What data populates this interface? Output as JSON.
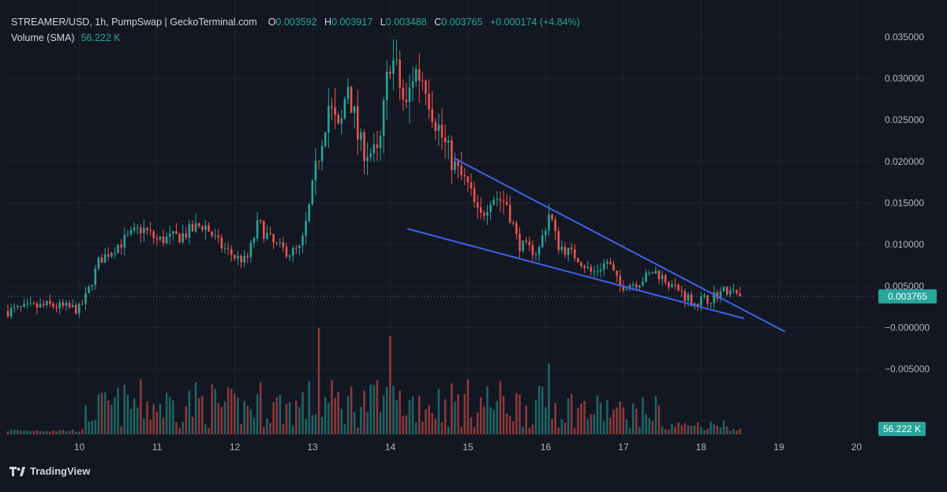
{
  "legend": {
    "symbol": "STREAMER/USD, 1h, PumpSwap | GeckoTerminal.com",
    "o_label": "O",
    "o_value": "0.003592",
    "h_label": "H",
    "h_value": "0.003917",
    "l_label": "L",
    "l_value": "0.003488",
    "c_label": "C",
    "c_value": "0.003765",
    "change": "+0.000174 (+4.84%)",
    "volume_label": "Volume (SMA)",
    "volume_value": "56.222 K"
  },
  "branding": {
    "text": "TradingView"
  },
  "colors": {
    "background": "#131722",
    "up": "#26a69a",
    "down": "#ef5350",
    "trendline": "#3d63e8",
    "price_badge": "#26a69a"
  },
  "chart_data": {
    "type": "candlestick",
    "x_axis": {
      "ticks": [
        "10",
        "11",
        "12",
        "13",
        "14",
        "15",
        "16",
        "17",
        "18",
        "19",
        "20"
      ],
      "range": [
        9.08,
        20.25
      ]
    },
    "y_axis": {
      "ticks": [
        "0.035000",
        "0.030000",
        "0.025000",
        "0.020000",
        "0.015000",
        "0.010000",
        "0.005000",
        "−0.000000",
        "−0.005000"
      ],
      "tick_values": [
        0.035,
        0.03,
        0.025,
        0.02,
        0.015,
        0.01,
        0.005,
        0.0,
        -0.005
      ],
      "range": [
        -0.0085,
        0.0385
      ]
    },
    "last_price": {
      "value": 0.003765,
      "label": "0.003765"
    },
    "last_volume": {
      "label": "56.222 K"
    },
    "anchors": [
      {
        "t": 9.08,
        "p": 0.002
      },
      {
        "t": 9.6,
        "p": 0.0027
      },
      {
        "t": 10.0,
        "p": 0.0022
      },
      {
        "t": 10.1,
        "p": 0.004
      },
      {
        "t": 10.25,
        "p": 0.008
      },
      {
        "t": 10.5,
        "p": 0.01
      },
      {
        "t": 10.8,
        "p": 0.012
      },
      {
        "t": 11.0,
        "p": 0.0105
      },
      {
        "t": 11.3,
        "p": 0.011
      },
      {
        "t": 11.6,
        "p": 0.0125
      },
      {
        "t": 11.8,
        "p": 0.01
      },
      {
        "t": 12.0,
        "p": 0.0085
      },
      {
        "t": 12.15,
        "p": 0.008
      },
      {
        "t": 12.3,
        "p": 0.0125
      },
      {
        "t": 12.5,
        "p": 0.01
      },
      {
        "t": 12.7,
        "p": 0.009
      },
      {
        "t": 12.85,
        "p": 0.0095
      },
      {
        "t": 12.95,
        "p": 0.014
      },
      {
        "t": 13.1,
        "p": 0.022
      },
      {
        "t": 13.2,
        "p": 0.027
      },
      {
        "t": 13.35,
        "p": 0.023
      },
      {
        "t": 13.45,
        "p": 0.03
      },
      {
        "t": 13.6,
        "p": 0.022
      },
      {
        "t": 13.85,
        "p": 0.0205
      },
      {
        "t": 14.0,
        "p": 0.033
      },
      {
        "t": 14.1,
        "p": 0.03
      },
      {
        "t": 14.2,
        "p": 0.026
      },
      {
        "t": 14.3,
        "p": 0.031
      },
      {
        "t": 14.45,
        "p": 0.03
      },
      {
        "t": 14.55,
        "p": 0.026
      },
      {
        "t": 14.7,
        "p": 0.022
      },
      {
        "t": 14.85,
        "p": 0.019
      },
      {
        "t": 15.0,
        "p": 0.017
      },
      {
        "t": 15.15,
        "p": 0.013
      },
      {
        "t": 15.3,
        "p": 0.016
      },
      {
        "t": 15.5,
        "p": 0.015
      },
      {
        "t": 15.65,
        "p": 0.01
      },
      {
        "t": 15.9,
        "p": 0.009
      },
      {
        "t": 16.05,
        "p": 0.014
      },
      {
        "t": 16.15,
        "p": 0.01
      },
      {
        "t": 16.4,
        "p": 0.0085
      },
      {
        "t": 16.6,
        "p": 0.0065
      },
      {
        "t": 16.8,
        "p": 0.008
      },
      {
        "t": 16.95,
        "p": 0.005
      },
      {
        "t": 17.2,
        "p": 0.0055
      },
      {
        "t": 17.4,
        "p": 0.0068
      },
      {
        "t": 17.65,
        "p": 0.005
      },
      {
        "t": 17.9,
        "p": 0.003
      },
      {
        "t": 18.1,
        "p": 0.0035
      },
      {
        "t": 18.3,
        "p": 0.0045
      },
      {
        "t": 18.5,
        "p": 0.0038
      }
    ],
    "trendlines": [
      {
        "name": "upper-trendline",
        "p1": {
          "t": 14.82,
          "p": 0.0204
        },
        "p2": {
          "t": 19.08,
          "p": -0.0005
        }
      },
      {
        "name": "lower-trendline",
        "p1": {
          "t": 14.22,
          "p": 0.0119
        },
        "p2": {
          "t": 18.55,
          "p": 0.0011
        }
      }
    ]
  }
}
